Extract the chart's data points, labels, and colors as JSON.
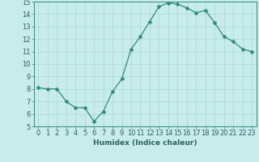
{
  "x": [
    0,
    1,
    2,
    3,
    4,
    5,
    6,
    7,
    8,
    9,
    10,
    11,
    12,
    13,
    14,
    15,
    16,
    17,
    18,
    19,
    20,
    21,
    22,
    23
  ],
  "y": [
    8.1,
    8.0,
    8.0,
    7.0,
    6.5,
    6.5,
    5.4,
    6.2,
    7.8,
    8.8,
    11.2,
    12.2,
    13.4,
    14.6,
    14.9,
    14.8,
    14.5,
    14.1,
    14.3,
    13.3,
    12.2,
    11.8,
    11.2,
    11.0
  ],
  "line_color": "#2e8b7a",
  "marker": "D",
  "marker_size": 2.5,
  "bg_color": "#c8ecec",
  "grid_color": "#a8d8d8",
  "xlabel": "Humidex (Indice chaleur)",
  "xlim": [
    -0.5,
    23.5
  ],
  "ylim": [
    5,
    15
  ],
  "yticks": [
    5,
    6,
    7,
    8,
    9,
    10,
    11,
    12,
    13,
    14,
    15
  ],
  "xticks": [
    0,
    1,
    2,
    3,
    4,
    5,
    6,
    7,
    8,
    9,
    10,
    11,
    12,
    13,
    14,
    15,
    16,
    17,
    18,
    19,
    20,
    21,
    22,
    23
  ],
  "xlabel_fontsize": 6.5,
  "tick_fontsize": 6,
  "spine_color": "#2e8b7a",
  "tick_color": "#2e6060"
}
